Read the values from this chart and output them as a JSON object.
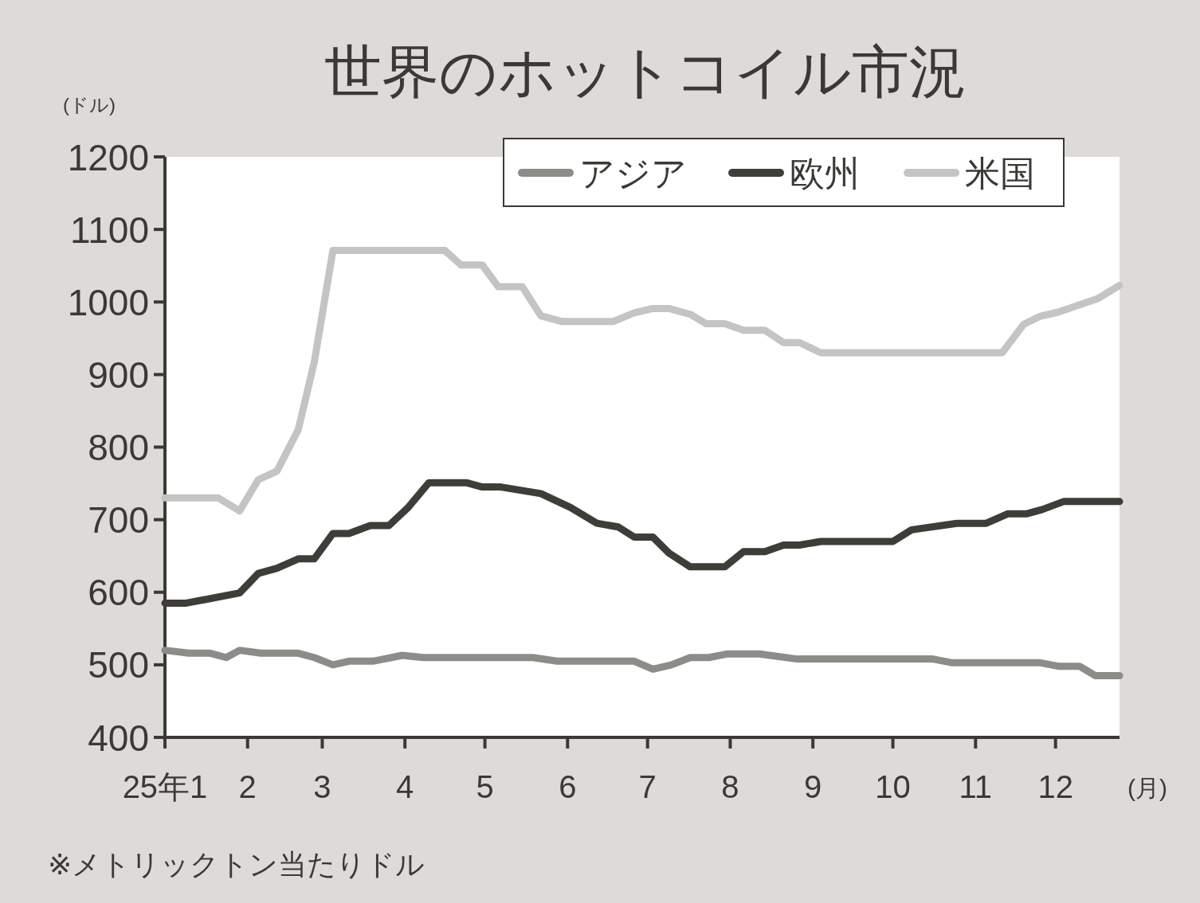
{
  "chart_data": {
    "type": "line",
    "title": "世界のホットコイル市況",
    "ylabel": "(ドル)",
    "xlabel": "(月)",
    "annotations": [
      "※メトリックトン当たりドル"
    ],
    "xlim": [
      "--01-01",
      "--12-25"
    ],
    "xticks": [
      {
        "value": "--01-01",
        "label": "25年1"
      },
      {
        "value": "--02-01",
        "label": "2"
      },
      {
        "value": "--03-01",
        "label": "3"
      },
      {
        "value": "--04-01",
        "label": "4"
      },
      {
        "value": "--05-01",
        "label": "5"
      },
      {
        "value": "--06-01",
        "label": "6"
      },
      {
        "value": "--07-01",
        "label": "7"
      },
      {
        "value": "--08-01",
        "label": "8"
      },
      {
        "value": "--09-01",
        "label": "9"
      },
      {
        "value": "--10-01",
        "label": "10"
      },
      {
        "value": "--11-01",
        "label": "11"
      },
      {
        "value": "--12-01",
        "label": "12"
      }
    ],
    "ylim": [
      400,
      1200
    ],
    "yticks": [
      400,
      500,
      600,
      700,
      800,
      900,
      1000,
      1100,
      1200
    ],
    "grid": false,
    "legend": "top right",
    "marker": "none",
    "line_style": "solid",
    "series": [
      {
        "name": "アジア",
        "color": "#8c8c88",
        "x": [
          "--01-01",
          "--01-10",
          "--01-18",
          "--01-24",
          "--01-29",
          "--02-06",
          "--02-20",
          "--02-26",
          "--03-05",
          "--03-11",
          "--03-20",
          "--03-31",
          "--04-08",
          "--05-19",
          "--05-28",
          "--06-26",
          "--07-03",
          "--07-10",
          "--07-17",
          "--07-24",
          "--07-31",
          "--08-12",
          "--08-26",
          "--10-16",
          "--10-23",
          "--11-25",
          "--12-02",
          "--12-10",
          "--12-16",
          "--12-25"
        ],
        "values": [
          520,
          516,
          516,
          510,
          520,
          516,
          516,
          510,
          500,
          505,
          505,
          513,
          510,
          510,
          505,
          505,
          494,
          500,
          510,
          510,
          515,
          515,
          508,
          508,
          503,
          503,
          498,
          498,
          485,
          485
        ]
      },
      {
        "name": "欧州",
        "color": "#3f3d38",
        "x": [
          "--01-01",
          "--01-09",
          "--01-29",
          "--02-05",
          "--02-12",
          "--02-20",
          "--02-26",
          "--03-05",
          "--03-11",
          "--03-19",
          "--03-26",
          "--04-02",
          "--04-10",
          "--04-24",
          "--04-30",
          "--05-07",
          "--05-22",
          "--06-02",
          "--06-12",
          "--06-20",
          "--06-26",
          "--07-03",
          "--07-09",
          "--07-17",
          "--07-30",
          "--08-06",
          "--08-14",
          "--08-21",
          "--08-27",
          "--09-04",
          "--10-01",
          "--10-08",
          "--10-25",
          "--11-05",
          "--11-13",
          "--11-20",
          "--11-26",
          "--12-04",
          "--12-25"
        ],
        "values": [
          585,
          585,
          599,
          626,
          633,
          646,
          646,
          681,
          681,
          692,
          692,
          716,
          751,
          751,
          745,
          745,
          736,
          717,
          695,
          690,
          676,
          676,
          654,
          635,
          635,
          656,
          656,
          665,
          665,
          670,
          670,
          686,
          695,
          695,
          708,
          708,
          714,
          725,
          725
        ]
      },
      {
        "name": "米国",
        "color": "#c4c4c2",
        "x": [
          "--01-01",
          "--01-21",
          "--01-29",
          "--02-05",
          "--02-12",
          "--02-20",
          "--02-26",
          "--03-05",
          "--04-16",
          "--04-22",
          "--04-30",
          "--05-06",
          "--05-15",
          "--05-22",
          "--05-30",
          "--06-18",
          "--06-26",
          "--07-03",
          "--07-09",
          "--07-17",
          "--07-23",
          "--07-30",
          "--08-06",
          "--08-14",
          "--08-21",
          "--08-27",
          "--09-04",
          "--11-11",
          "--11-19",
          "--11-25",
          "--12-02",
          "--12-17",
          "--12-25"
        ],
        "values": [
          730,
          730,
          712,
          755,
          767,
          824,
          917,
          1071,
          1071,
          1051,
          1051,
          1021,
          1021,
          981,
          973,
          973,
          985,
          991,
          991,
          983,
          970,
          970,
          961,
          961,
          944,
          944,
          930,
          930,
          969,
          980,
          986,
          1005,
          1023
        ]
      }
    ]
  }
}
